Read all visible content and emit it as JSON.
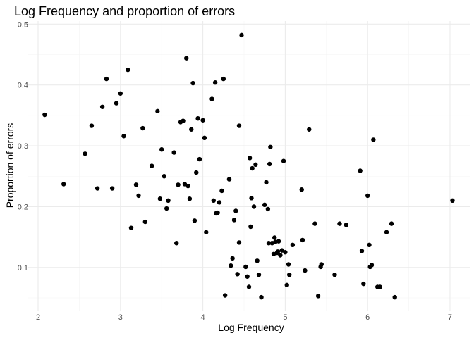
{
  "chart_data": {
    "type": "scatter",
    "title": "Log Frequency and proportion of errors",
    "xlabel": "Log Frequency",
    "ylabel": "Proportion of errors",
    "xlim": [
      1.88,
      7.24
    ],
    "ylim": [
      0.028,
      0.505
    ],
    "x_ticks": [
      2,
      3,
      4,
      5,
      6,
      7
    ],
    "y_ticks": [
      0.1,
      0.2,
      0.3,
      0.4,
      0.5
    ],
    "x_tick_labels": [
      "2",
      "3",
      "4",
      "5",
      "6",
      "7"
    ],
    "y_tick_labels": [
      "0.1",
      "0.2",
      "0.3",
      "0.4",
      "0.5"
    ],
    "grid": true,
    "point_color": "#000000",
    "points": [
      {
        "x": 2.08,
        "y": 0.351
      },
      {
        "x": 2.31,
        "y": 0.237
      },
      {
        "x": 2.57,
        "y": 0.287
      },
      {
        "x": 2.65,
        "y": 0.333
      },
      {
        "x": 2.72,
        "y": 0.23
      },
      {
        "x": 2.78,
        "y": 0.364
      },
      {
        "x": 2.83,
        "y": 0.41
      },
      {
        "x": 2.9,
        "y": 0.23
      },
      {
        "x": 2.95,
        "y": 0.37
      },
      {
        "x": 3.0,
        "y": 0.386
      },
      {
        "x": 3.04,
        "y": 0.316
      },
      {
        "x": 3.09,
        "y": 0.425
      },
      {
        "x": 3.13,
        "y": 0.165
      },
      {
        "x": 3.19,
        "y": 0.236
      },
      {
        "x": 3.22,
        "y": 0.218
      },
      {
        "x": 3.27,
        "y": 0.329
      },
      {
        "x": 3.3,
        "y": 0.175
      },
      {
        "x": 3.38,
        "y": 0.267
      },
      {
        "x": 3.45,
        "y": 0.357
      },
      {
        "x": 3.48,
        "y": 0.213
      },
      {
        "x": 3.5,
        "y": 0.294
      },
      {
        "x": 3.53,
        "y": 0.25
      },
      {
        "x": 3.56,
        "y": 0.197
      },
      {
        "x": 3.58,
        "y": 0.21
      },
      {
        "x": 3.65,
        "y": 0.289
      },
      {
        "x": 3.68,
        "y": 0.14
      },
      {
        "x": 3.7,
        "y": 0.236
      },
      {
        "x": 3.73,
        "y": 0.339
      },
      {
        "x": 3.76,
        "y": 0.341
      },
      {
        "x": 3.78,
        "y": 0.237
      },
      {
        "x": 3.8,
        "y": 0.444
      },
      {
        "x": 3.82,
        "y": 0.234
      },
      {
        "x": 3.84,
        "y": 0.213
      },
      {
        "x": 3.86,
        "y": 0.327
      },
      {
        "x": 3.88,
        "y": 0.403
      },
      {
        "x": 3.9,
        "y": 0.177
      },
      {
        "x": 3.92,
        "y": 0.256
      },
      {
        "x": 3.94,
        "y": 0.345
      },
      {
        "x": 3.96,
        "y": 0.278
      },
      {
        "x": 4.0,
        "y": 0.342
      },
      {
        "x": 4.02,
        "y": 0.313
      },
      {
        "x": 4.04,
        "y": 0.158
      },
      {
        "x": 4.11,
        "y": 0.377
      },
      {
        "x": 4.13,
        "y": 0.21
      },
      {
        "x": 4.15,
        "y": 0.404
      },
      {
        "x": 4.16,
        "y": 0.189
      },
      {
        "x": 4.18,
        "y": 0.19
      },
      {
        "x": 4.2,
        "y": 0.207
      },
      {
        "x": 4.23,
        "y": 0.226
      },
      {
        "x": 4.25,
        "y": 0.41
      },
      {
        "x": 4.27,
        "y": 0.054
      },
      {
        "x": 4.32,
        "y": 0.245
      },
      {
        "x": 4.34,
        "y": 0.103
      },
      {
        "x": 4.36,
        "y": 0.115
      },
      {
        "x": 4.38,
        "y": 0.178
      },
      {
        "x": 4.4,
        "y": 0.193
      },
      {
        "x": 4.42,
        "y": 0.089
      },
      {
        "x": 4.44,
        "y": 0.333
      },
      {
        "x": 4.44,
        "y": 0.141
      },
      {
        "x": 4.47,
        "y": 0.482
      },
      {
        "x": 4.52,
        "y": 0.101
      },
      {
        "x": 4.54,
        "y": 0.085
      },
      {
        "x": 4.56,
        "y": 0.068
      },
      {
        "x": 4.57,
        "y": 0.28
      },
      {
        "x": 4.58,
        "y": 0.167
      },
      {
        "x": 4.59,
        "y": 0.214
      },
      {
        "x": 4.6,
        "y": 0.263
      },
      {
        "x": 4.62,
        "y": 0.2
      },
      {
        "x": 4.64,
        "y": 0.269
      },
      {
        "x": 4.66,
        "y": 0.111
      },
      {
        "x": 4.68,
        "y": 0.088
      },
      {
        "x": 4.71,
        "y": 0.051
      },
      {
        "x": 4.75,
        "y": 0.203
      },
      {
        "x": 4.77,
        "y": 0.24
      },
      {
        "x": 4.79,
        "y": 0.196
      },
      {
        "x": 4.8,
        "y": 0.14
      },
      {
        "x": 4.81,
        "y": 0.27
      },
      {
        "x": 4.82,
        "y": 0.298
      },
      {
        "x": 4.84,
        "y": 0.14
      },
      {
        "x": 4.86,
        "y": 0.122
      },
      {
        "x": 4.87,
        "y": 0.149
      },
      {
        "x": 4.88,
        "y": 0.142
      },
      {
        "x": 4.9,
        "y": 0.124
      },
      {
        "x": 4.91,
        "y": 0.126
      },
      {
        "x": 4.92,
        "y": 0.143
      },
      {
        "x": 4.94,
        "y": 0.12
      },
      {
        "x": 4.96,
        "y": 0.128
      },
      {
        "x": 4.98,
        "y": 0.275
      },
      {
        "x": 5.0,
        "y": 0.125
      },
      {
        "x": 5.02,
        "y": 0.071
      },
      {
        "x": 5.04,
        "y": 0.105
      },
      {
        "x": 5.05,
        "y": 0.088
      },
      {
        "x": 5.09,
        "y": 0.137
      },
      {
        "x": 5.2,
        "y": 0.228
      },
      {
        "x": 5.21,
        "y": 0.145
      },
      {
        "x": 5.24,
        "y": 0.095
      },
      {
        "x": 5.29,
        "y": 0.327
      },
      {
        "x": 5.36,
        "y": 0.172
      },
      {
        "x": 5.4,
        "y": 0.053
      },
      {
        "x": 5.43,
        "y": 0.101
      },
      {
        "x": 5.44,
        "y": 0.105
      },
      {
        "x": 5.6,
        "y": 0.088
      },
      {
        "x": 5.66,
        "y": 0.172
      },
      {
        "x": 5.74,
        "y": 0.17
      },
      {
        "x": 5.91,
        "y": 0.259
      },
      {
        "x": 5.93,
        "y": 0.127
      },
      {
        "x": 5.95,
        "y": 0.073
      },
      {
        "x": 6.0,
        "y": 0.218
      },
      {
        "x": 6.02,
        "y": 0.137
      },
      {
        "x": 6.03,
        "y": 0.101
      },
      {
        "x": 6.05,
        "y": 0.104
      },
      {
        "x": 6.07,
        "y": 0.31
      },
      {
        "x": 6.12,
        "y": 0.068
      },
      {
        "x": 6.15,
        "y": 0.068
      },
      {
        "x": 6.23,
        "y": 0.158
      },
      {
        "x": 6.29,
        "y": 0.172
      },
      {
        "x": 6.33,
        "y": 0.051
      },
      {
        "x": 7.03,
        "y": 0.21
      }
    ]
  }
}
